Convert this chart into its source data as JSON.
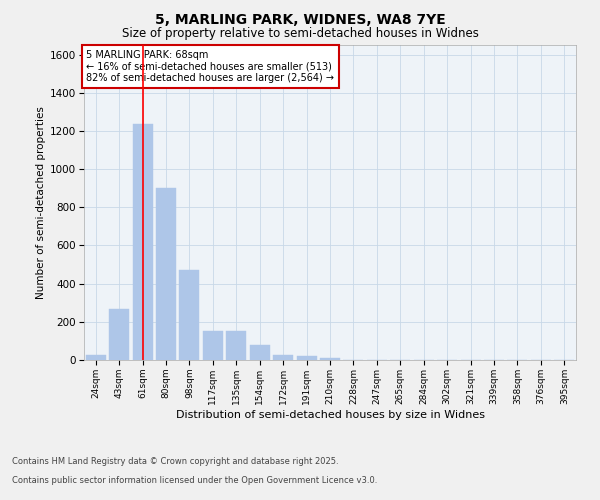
{
  "title_line1": "5, MARLING PARK, WIDNES, WA8 7YE",
  "title_line2": "Size of property relative to semi-detached houses in Widnes",
  "xlabel": "Distribution of semi-detached houses by size in Widnes",
  "ylabel": "Number of semi-detached properties",
  "categories": [
    "24sqm",
    "43sqm",
    "61sqm",
    "80sqm",
    "98sqm",
    "117sqm",
    "135sqm",
    "154sqm",
    "172sqm",
    "191sqm",
    "210sqm",
    "228sqm",
    "247sqm",
    "265sqm",
    "284sqm",
    "302sqm",
    "321sqm",
    "339sqm",
    "358sqm",
    "376sqm",
    "395sqm"
  ],
  "values": [
    27,
    265,
    1235,
    900,
    470,
    152,
    152,
    78,
    28,
    20,
    10,
    0,
    0,
    0,
    0,
    0,
    0,
    0,
    0,
    0,
    0
  ],
  "bar_color": "#aec6e8",
  "bar_edgecolor": "#aec6e8",
  "vline_x": 2,
  "vline_color": "red",
  "ylim": [
    0,
    1650
  ],
  "yticks": [
    0,
    200,
    400,
    600,
    800,
    1000,
    1200,
    1400,
    1600
  ],
  "annotation_title": "5 MARLING PARK: 68sqm",
  "annotation_line2": "← 16% of semi-detached houses are smaller (513)",
  "annotation_line3": "82% of semi-detached houses are larger (2,564) →",
  "annotation_box_color": "#ffffff",
  "annotation_box_edgecolor": "#cc0000",
  "grid_color": "#c8d8e8",
  "background_color": "#eef3f8",
  "fig_background": "#f0f0f0",
  "footer_line1": "Contains HM Land Registry data © Crown copyright and database right 2025.",
  "footer_line2": "Contains public sector information licensed under the Open Government Licence v3.0."
}
